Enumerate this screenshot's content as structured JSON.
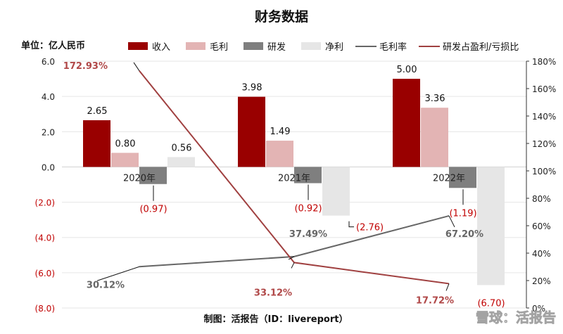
{
  "title": "财务数据",
  "unit_label": "单位：亿人民币",
  "footer": "制图：活报告（ID：livereport）",
  "watermark": "雪球：活报告",
  "chart_data": {
    "type": "bar",
    "categories": [
      "2020年",
      "2021年",
      "2022年"
    ],
    "series": [
      {
        "name": "收入",
        "values": [
          2.65,
          3.98,
          5.0
        ],
        "labels": [
          "2.65",
          "3.98",
          "5.00"
        ],
        "color": "#990000"
      },
      {
        "name": "毛利",
        "values": [
          0.8,
          1.49,
          3.36
        ],
        "labels": [
          "0.80",
          "1.49",
          "3.36"
        ],
        "color": "#e3b4b4"
      },
      {
        "name": "研发",
        "values": [
          -0.97,
          -0.92,
          -1.19
        ],
        "labels": [
          "(0.97)",
          "(0.92)",
          "(1.19)"
        ],
        "color": "#7f7f7f"
      },
      {
        "name": "净利",
        "values": [
          0.56,
          -2.76,
          -6.7
        ],
        "labels": [
          "0.56",
          "(2.76)",
          "(6.70)"
        ],
        "color": "#e6e6e6"
      }
    ],
    "line_series": [
      {
        "name": "毛利率",
        "values": [
          30.12,
          37.49,
          67.2
        ],
        "labels": [
          "30.12%",
          "37.49%",
          "67.20%"
        ],
        "color": "#666666",
        "axis": "right"
      },
      {
        "name": "研发占盈利/亏损比",
        "values": [
          172.93,
          33.12,
          17.72
        ],
        "labels": [
          "172.93%",
          "33.12%",
          "17.72%"
        ],
        "color": "#a04040",
        "axis": "right"
      }
    ],
    "y_left": {
      "range": [
        -8.0,
        6.0
      ],
      "ticks": [
        6.0,
        4.0,
        2.0,
        0.0,
        -2.0,
        -4.0,
        -6.0,
        -8.0
      ],
      "tick_labels": [
        "6.0",
        "4.0",
        "2.0",
        "0.0",
        "(2.0)",
        "(4.0)",
        "(6.0)",
        "(8.0)"
      ]
    },
    "y_right": {
      "range": [
        0,
        180
      ],
      "ticks": [
        180,
        160,
        140,
        120,
        100,
        80,
        60,
        40,
        20,
        0
      ],
      "tick_labels": [
        "180%",
        "160%",
        "140%",
        "120%",
        "100%",
        "80%",
        "60%",
        "40%",
        "20%",
        "0%"
      ]
    },
    "grid": true,
    "legend_position": "top",
    "colors": {
      "negative_tick": "#c00000",
      "positive_tick": "#222222",
      "grid": "#e6e6e6"
    }
  }
}
